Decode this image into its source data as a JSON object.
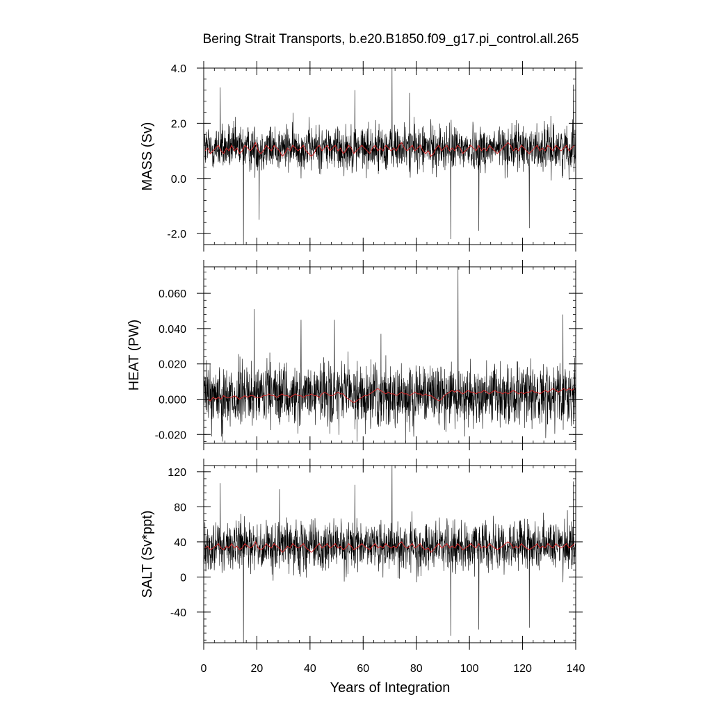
{
  "title": "Bering Strait Transports, b.e20.B1850.f09_g17.pi_control.all.265",
  "xlabel": "Years of Integration",
  "colors": {
    "monthly": "#000000",
    "annual_mean": "#d62728"
  },
  "chart_data": [
    {
      "type": "line",
      "panel": "top",
      "ylabel": "MASS (Sv)",
      "xlim": [
        0,
        140
      ],
      "ylim": [
        -2.4,
        4.0
      ],
      "x_ticks": [
        0,
        20,
        40,
        60,
        80,
        100,
        120,
        140
      ],
      "y_ticks": [
        "-2.0",
        "0.0",
        "2.0",
        "4.0"
      ],
      "y_tick_values": [
        -2.0,
        0.0,
        2.0,
        4.0
      ],
      "y_minor_step": 0.4,
      "grid": false,
      "series": [
        {
          "style": "monthly",
          "mean": 1.1,
          "noise_sd": 0.42,
          "min": -2.4,
          "max": 4.0,
          "color": "#000000",
          "spikes": [
            [
              6.2,
              3.3
            ],
            [
              14.9,
              -2.4
            ],
            [
              20.8,
              -1.5
            ],
            [
              56.8,
              3.2
            ],
            [
              70.8,
              4.0
            ],
            [
              77.4,
              3.1
            ],
            [
              92.9,
              -2.2
            ],
            [
              103.5,
              -1.9
            ],
            [
              122.5,
              -1.8
            ],
            [
              139.1,
              3.4
            ]
          ]
        },
        {
          "style": "annual_mean",
          "color": "#d62728",
          "values": [
            1.0,
            1.1,
            0.9,
            1.0,
            1.1,
            1.2,
            1.0,
            0.9,
            1.1,
            1.0,
            1.2,
            1.0,
            1.1,
            0.9,
            1.0,
            1.2,
            1.1,
            1.0,
            1.1,
            1.3,
            1.0,
            0.9,
            1.0,
            1.2,
            1.1,
            1.0,
            1.2,
            1.1,
            1.0,
            0.8,
            0.9,
            1.1,
            1.0,
            1.2,
            1.1,
            1.0,
            1.1,
            1.2,
            1.0,
            0.9,
            0.8,
            0.9,
            1.1,
            1.2,
            1.0,
            1.1,
            1.2,
            1.0,
            1.1,
            1.2,
            1.0,
            1.1,
            0.9,
            1.0,
            1.2,
            1.1,
            0.9,
            1.0,
            1.1,
            1.2,
            1.1,
            1.0,
            0.9,
            1.1,
            1.2,
            1.0,
            1.1,
            1.0,
            1.2,
            1.1,
            1.0,
            1.1,
            1.0,
            1.2,
            1.3,
            1.1,
            1.0,
            1.1,
            1.2,
            1.0,
            1.1,
            1.2,
            1.0,
            0.9,
            1.0,
            0.8,
            0.9,
            1.1,
            1.2,
            1.0,
            1.1,
            1.2,
            1.0,
            1.1,
            1.0,
            1.2,
            1.1,
            0.9,
            1.0,
            1.1,
            1.2,
            1.1,
            1.0,
            1.2,
            1.0,
            1.1,
            1.0,
            1.2,
            1.1,
            1.0,
            0.9,
            1.0,
            1.1,
            1.2,
            1.3,
            1.2,
            1.0,
            1.1,
            1.0,
            1.2,
            1.1,
            1.0,
            0.9,
            1.0,
            1.1,
            1.2,
            1.0,
            1.1,
            1.0,
            1.2,
            1.1,
            1.0,
            1.2,
            1.1,
            1.0,
            1.1,
            1.2,
            1.0,
            1.1,
            1.2
          ]
        }
      ]
    },
    {
      "type": "line",
      "panel": "middle",
      "ylabel": "HEAT (PW)",
      "xlim": [
        0,
        140
      ],
      "ylim": [
        -0.025,
        0.075
      ],
      "x_ticks": [
        0,
        20,
        40,
        60,
        80,
        100,
        120,
        140
      ],
      "y_ticks": [
        "-0.020",
        "0.000",
        "0.020",
        "0.040",
        "0.060"
      ],
      "y_tick_values": [
        -0.02,
        0.0,
        0.02,
        0.04,
        0.06
      ],
      "y_minor_step": 0.004,
      "grid": false,
      "series": [
        {
          "style": "monthly",
          "mean": 0.002,
          "noise_sd": 0.009,
          "min": -0.025,
          "max": 0.075,
          "color": "#000000",
          "spikes": [
            [
              18.9,
              0.051
            ],
            [
              36.6,
              0.045
            ],
            [
              49.2,
              0.045
            ],
            [
              66.7,
              0.037
            ],
            [
              95.7,
              0.075
            ],
            [
              135.2,
              0.048
            ],
            [
              7.0,
              -0.024
            ],
            [
              57.7,
              -0.024
            ],
            [
              128.7,
              -0.022
            ]
          ]
        },
        {
          "style": "annual_mean",
          "color": "#d62728",
          "values": [
            0.0,
            0.0,
            -0.001,
            0.001,
            0.0,
            0.001,
            0.0,
            0.002,
            0.001,
            0.001,
            0.001,
            0.002,
            0.001,
            0.0,
            0.001,
            0.002,
            0.001,
            0.002,
            0.002,
            0.001,
            0.001,
            0.001,
            0.002,
            0.002,
            0.003,
            0.002,
            0.002,
            0.001,
            0.002,
            0.003,
            0.002,
            0.002,
            0.001,
            0.002,
            0.003,
            0.002,
            0.002,
            0.001,
            0.002,
            0.002,
            0.003,
            0.002,
            0.002,
            0.001,
            0.003,
            0.004,
            0.003,
            0.002,
            0.002,
            0.003,
            0.004,
            0.003,
            0.003,
            0.001,
            0.0,
            -0.001,
            -0.002,
            -0.001,
            0.0,
            0.001,
            0.002,
            0.002,
            0.003,
            0.004,
            0.005,
            0.006,
            0.005,
            0.004,
            0.003,
            0.004,
            0.003,
            0.003,
            0.002,
            0.003,
            0.004,
            0.003,
            0.003,
            0.002,
            0.003,
            0.004,
            0.003,
            0.003,
            0.002,
            0.003,
            0.002,
            0.002,
            0.001,
            0.0,
            -0.001,
            0.0,
            0.002,
            0.003,
            0.004,
            0.005,
            0.004,
            0.005,
            0.004,
            0.003,
            0.004,
            0.005,
            0.004,
            0.004,
            0.003,
            0.004,
            0.004,
            0.005,
            0.004,
            0.003,
            0.004,
            0.005,
            0.004,
            0.004,
            0.003,
            0.004,
            0.003,
            0.004,
            0.005,
            0.004,
            0.003,
            0.004,
            0.003,
            0.004,
            0.004,
            0.005,
            0.004,
            0.004,
            0.003,
            0.004,
            0.005,
            0.004,
            0.005,
            0.006,
            0.005,
            0.004,
            0.005,
            0.006,
            0.005,
            0.006,
            0.005,
            0.006
          ]
        }
      ]
    },
    {
      "type": "line",
      "panel": "bottom",
      "ylabel": "SALT (Sv*ppt)",
      "xlim": [
        0,
        140
      ],
      "ylim": [
        -75,
        127
      ],
      "x_ticks": [
        0,
        20,
        40,
        60,
        80,
        100,
        120,
        140
      ],
      "x_tick_labels": [
        "0",
        "20",
        "40",
        "60",
        "80",
        "100",
        "120",
        "140"
      ],
      "y_ticks": [
        "-40",
        "0",
        "40",
        "80",
        "120"
      ],
      "y_tick_values": [
        -40,
        0,
        40,
        80,
        120
      ],
      "y_minor_step": 8,
      "grid": false,
      "series": [
        {
          "style": "monthly",
          "mean": 35,
          "noise_sd": 14,
          "min": -75,
          "max": 127,
          "color": "#000000",
          "spikes": [
            [
              6.2,
              107
            ],
            [
              14.9,
              -75
            ],
            [
              28.5,
              100
            ],
            [
              56.8,
              105
            ],
            [
              70.8,
              127
            ],
            [
              92.9,
              -67
            ],
            [
              103.5,
              -60
            ],
            [
              122.5,
              -58
            ],
            [
              139.1,
              109
            ]
          ]
        },
        {
          "style": "annual_mean",
          "color": "#d62728",
          "values": [
            33,
            35,
            31,
            33,
            35,
            38,
            33,
            31,
            35,
            33,
            38,
            33,
            35,
            31,
            33,
            38,
            35,
            33,
            35,
            40,
            33,
            31,
            33,
            38,
            35,
            33,
            38,
            35,
            33,
            28,
            31,
            35,
            33,
            38,
            35,
            33,
            35,
            38,
            33,
            31,
            28,
            31,
            35,
            38,
            33,
            35,
            38,
            33,
            35,
            38,
            33,
            35,
            31,
            33,
            38,
            35,
            31,
            33,
            35,
            38,
            35,
            33,
            31,
            35,
            38,
            33,
            35,
            33,
            38,
            35,
            33,
            35,
            33,
            38,
            40,
            35,
            33,
            35,
            38,
            33,
            35,
            38,
            33,
            31,
            33,
            28,
            31,
            35,
            38,
            33,
            35,
            38,
            33,
            35,
            33,
            38,
            35,
            31,
            33,
            35,
            38,
            35,
            33,
            38,
            33,
            35,
            33,
            38,
            35,
            33,
            31,
            33,
            35,
            38,
            40,
            38,
            33,
            35,
            33,
            38,
            35,
            33,
            31,
            33,
            35,
            38,
            33,
            35,
            33,
            38,
            35,
            33,
            38,
            35,
            33,
            35,
            38,
            33,
            35,
            38
          ]
        }
      ]
    }
  ]
}
